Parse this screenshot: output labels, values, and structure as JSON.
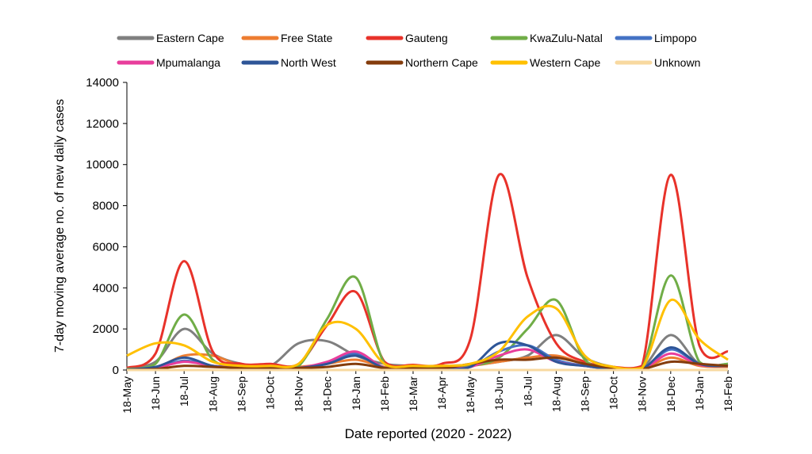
{
  "chart_data": {
    "type": "line",
    "title": "",
    "xlabel": "Date reported (2020 - 2022)",
    "ylabel": "7-day moving average no. of new daily cases",
    "ylim": [
      0,
      14000
    ],
    "yticks": [
      "0",
      "2000",
      "4000",
      "6000",
      "8000",
      "10000",
      "12000",
      "14000"
    ],
    "x_dates": [
      "2020-05-18",
      "2020-06-18",
      "2020-07-18",
      "2020-08-18",
      "2020-09-18",
      "2020-10-18",
      "2020-11-18",
      "2020-12-18",
      "2021-01-18",
      "2021-02-18",
      "2021-03-18",
      "2021-04-18",
      "2021-05-18",
      "2021-06-18",
      "2021-07-18",
      "2021-08-18",
      "2021-09-18",
      "2021-10-18",
      "2021-11-18",
      "2021-12-18",
      "2022-01-18",
      "2022-02-18"
    ],
    "xticks": [
      "18-May",
      "18-Jun",
      "18-Jul",
      "18-Aug",
      "18-Sep",
      "18-Oct",
      "18-Nov",
      "18-Dec",
      "18-Jan",
      "18-Feb",
      "18-Mar",
      "18-Apr",
      "18-May",
      "18-Jun",
      "18-Jul",
      "18-Aug",
      "18-Sep",
      "18-Oct",
      "18-Nov",
      "18-Dec",
      "18-Jan",
      "18-Feb"
    ],
    "legend_position": "top",
    "grid": false,
    "series": [
      {
        "name": "Eastern Cape",
        "color": "#7f7f7f",
        "values": [
          100,
          400,
          2000,
          800,
          300,
          200,
          1300,
          1400,
          700,
          300,
          200,
          200,
          250,
          400,
          700,
          1700,
          600,
          150,
          100,
          1700,
          300,
          300
        ]
      },
      {
        "name": "Free State",
        "color": "#ed7d31",
        "values": [
          20,
          100,
          700,
          700,
          200,
          100,
          150,
          300,
          500,
          150,
          100,
          100,
          200,
          400,
          600,
          700,
          300,
          100,
          50,
          600,
          200,
          150
        ]
      },
      {
        "name": "Gauteng",
        "color": "#e8322a",
        "values": [
          100,
          800,
          5300,
          900,
          300,
          300,
          300,
          2200,
          3800,
          400,
          250,
          300,
          1500,
          9500,
          4500,
          1300,
          400,
          150,
          200,
          9500,
          1200,
          900
        ]
      },
      {
        "name": "KwaZulu-Natal",
        "color": "#70ad47",
        "values": [
          50,
          300,
          2700,
          500,
          200,
          150,
          200,
          2500,
          4500,
          300,
          150,
          150,
          200,
          600,
          2000,
          3400,
          500,
          100,
          100,
          4600,
          400,
          300
        ]
      },
      {
        "name": "Limpopo",
        "color": "#4472c4",
        "values": [
          20,
          100,
          450,
          200,
          100,
          80,
          100,
          300,
          800,
          100,
          50,
          50,
          150,
          900,
          1200,
          500,
          200,
          50,
          50,
          1000,
          300,
          200
        ]
      },
      {
        "name": "Mpumalanga",
        "color": "#e83e9c",
        "values": [
          20,
          100,
          400,
          200,
          100,
          80,
          100,
          400,
          900,
          100,
          50,
          50,
          150,
          700,
          1000,
          400,
          200,
          50,
          50,
          800,
          250,
          200
        ]
      },
      {
        "name": "North West",
        "color": "#2e5597",
        "values": [
          20,
          150,
          600,
          200,
          100,
          80,
          100,
          300,
          700,
          100,
          50,
          50,
          150,
          1300,
          1200,
          400,
          200,
          50,
          50,
          1100,
          300,
          200
        ]
      },
      {
        "name": "Northern Cape",
        "color": "#843c0c",
        "values": [
          10,
          50,
          200,
          150,
          100,
          80,
          100,
          150,
          300,
          100,
          80,
          80,
          300,
          500,
          500,
          600,
          300,
          100,
          50,
          400,
          300,
          200
        ]
      },
      {
        "name": "Western Cape",
        "color": "#ffc000",
        "values": [
          700,
          1300,
          1200,
          400,
          200,
          200,
          300,
          2200,
          2000,
          300,
          200,
          200,
          300,
          900,
          2600,
          3000,
          700,
          150,
          100,
          3400,
          1500,
          500
        ]
      },
      {
        "name": "Unknown",
        "color": "#f8d9a0",
        "values": [
          0,
          0,
          0,
          0,
          0,
          0,
          0,
          0,
          0,
          0,
          0,
          0,
          0,
          0,
          0,
          0,
          0,
          0,
          0,
          0,
          0,
          0
        ]
      }
    ]
  }
}
